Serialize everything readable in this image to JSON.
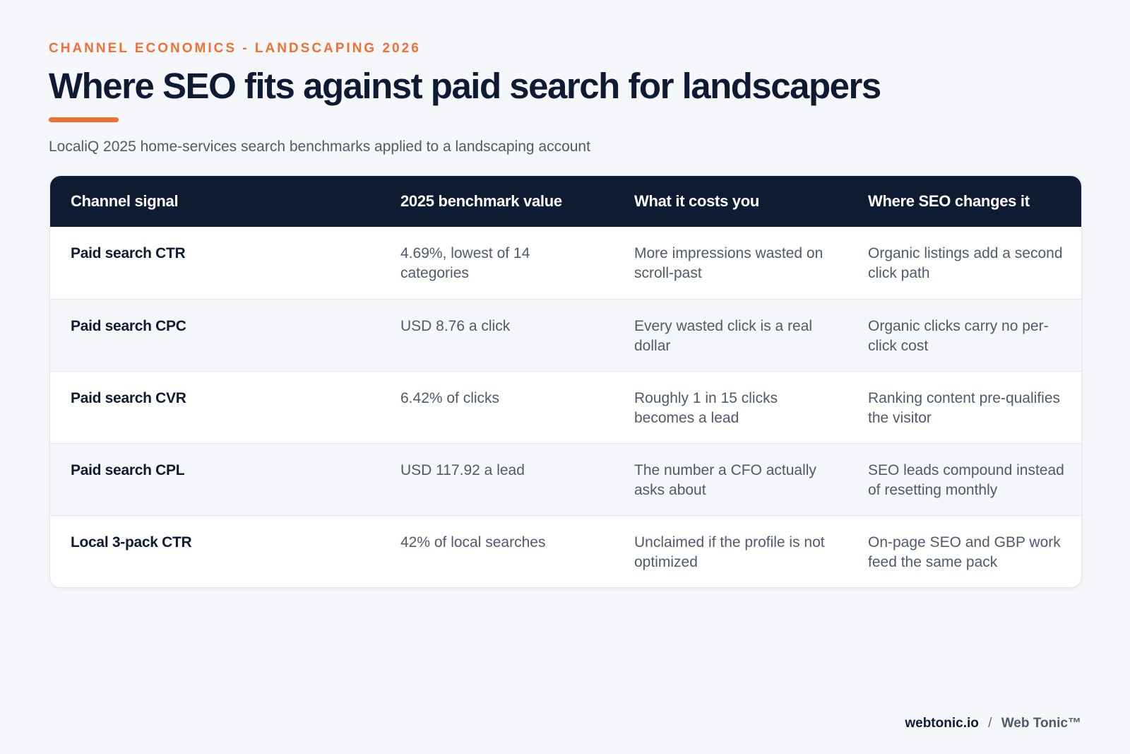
{
  "header": {
    "eyebrow": "CHANNEL ECONOMICS - LANDSCAPING 2026",
    "title": "Where SEO fits against paid search for landscapers",
    "subtitle": "LocaliQ 2025 home-services search benchmarks applied to a landscaping account"
  },
  "table": {
    "columns": [
      "Channel signal",
      "2025 benchmark value",
      "What it costs you",
      "Where SEO changes it"
    ],
    "rows": [
      [
        "Paid search CTR",
        "4.69%, lowest of 14 categories",
        "More impressions wasted on scroll-past",
        "Organic listings add a second click path"
      ],
      [
        "Paid search CPC",
        "USD 8.76 a click",
        "Every wasted click is a real dollar",
        "Organic clicks carry no per-click cost"
      ],
      [
        "Paid search CVR",
        "6.42% of clicks",
        "Roughly 1 in 15 clicks becomes a lead",
        "Ranking content pre-qualifies the visitor"
      ],
      [
        "Paid search CPL",
        "USD 117.92 a lead",
        "The number a CFO actually asks about",
        "SEO leads compound instead of resetting monthly"
      ],
      [
        "Local 3-pack CTR",
        "42% of local searches",
        "Unclaimed if the profile is not optimized",
        "On-page SEO and GBP work feed the same pack"
      ]
    ]
  },
  "footer": {
    "domain": "webtonic.io",
    "separator": "/",
    "brand": "Web Tonic™"
  },
  "colors": {
    "accent": "#ef7234",
    "navy": "#0f1b33",
    "background": "#f5f7fa"
  }
}
